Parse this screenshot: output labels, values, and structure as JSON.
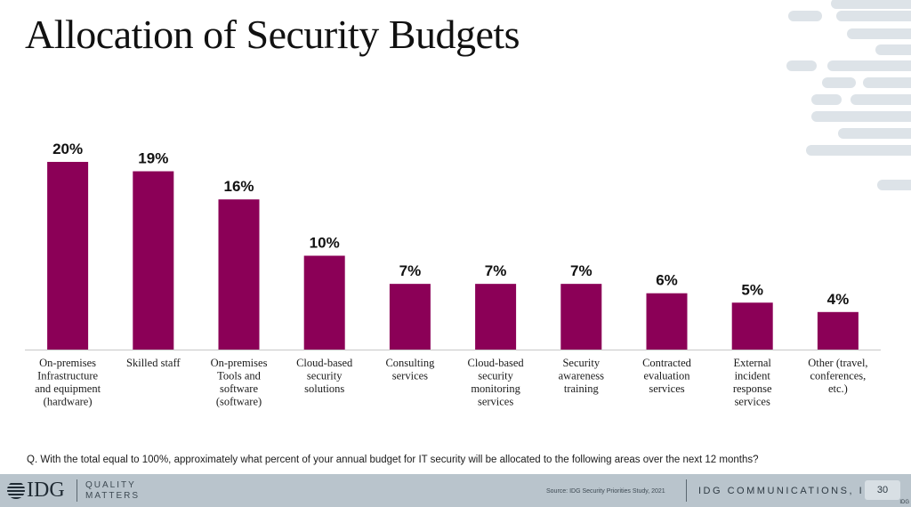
{
  "slide": {
    "title": "Allocation of Security Budgets",
    "question": "Q. With the total equal to 100%, approximately what percent of your annual budget for IT security will be allocated to the following areas over the next 12 months?"
  },
  "footer": {
    "logo_text": "IDG",
    "tagline_line1": "QUALITY",
    "tagline_line2": "MATTERS",
    "source": "Source: IDG Security Priorities Study, 2021",
    "company": "IDG COMMUNICATIONS, INC.",
    "page_number": "30",
    "corner_mark": "IDG"
  },
  "colors": {
    "bar": "#8b0057",
    "decoration": "#dde3e8",
    "footer_bg": "#b9c4cc"
  },
  "chart_data": {
    "type": "bar",
    "categories": [
      "On-premises Infrastructure and equipment (hardware)",
      "Skilled staff",
      "On-premises Tools and software (software)",
      "Cloud-based security solutions",
      "Consulting services",
      "Cloud-based security monitoring services",
      "Security awareness training",
      "Contracted evaluation services",
      "External incident response services",
      "Other (travel, conferences, etc.)"
    ],
    "category_lines": [
      [
        "On-premises",
        "Infrastructure",
        "and equipment",
        "(hardware)"
      ],
      [
        "Skilled staff"
      ],
      [
        "On-premises",
        "Tools and",
        "software",
        "(software)"
      ],
      [
        "Cloud-based",
        "security",
        "solutions"
      ],
      [
        "Consulting",
        "services"
      ],
      [
        "Cloud-based",
        "security",
        "monitoring",
        "services"
      ],
      [
        "Security",
        "awareness",
        "training"
      ],
      [
        "Contracted",
        "evaluation",
        "services"
      ],
      [
        "External",
        "incident",
        "response",
        "services"
      ],
      [
        "Other (travel,",
        "conferences,",
        "etc.)"
      ]
    ],
    "values": [
      20,
      19,
      16,
      10,
      7,
      7,
      7,
      6,
      5,
      4
    ],
    "data_labels": [
      "20%",
      "19%",
      "16%",
      "10%",
      "7%",
      "7%",
      "7%",
      "6%",
      "5%",
      "4%"
    ],
    "unit": "%",
    "ylim": [
      0,
      20
    ],
    "grid": false,
    "legend": "none"
  }
}
